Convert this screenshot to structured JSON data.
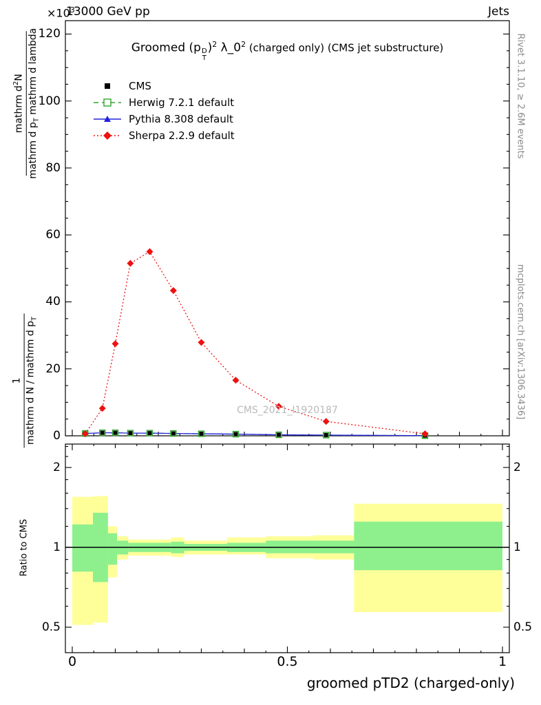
{
  "header": {
    "exponent_base": "×10",
    "exponent_sup": "3",
    "beam": "13000 GeV pp",
    "right": "Jets"
  },
  "title": {
    "part1": "Groomed",
    "part2": " (p",
    "sup_d": "D",
    "sub_t": "T",
    "part3": ")",
    "sup_2a": "2",
    "part4": " λ_0",
    "sup_2b": "2",
    "part5": "  (charged only) (CMS jet substructure)"
  },
  "watermark": "CMS_2021_I1920187",
  "y_axis": {
    "frac1_num_pre": "mathrm d",
    "frac1_num_sup": "2",
    "frac1_num_post": "N",
    "frac1_den_pre": "mathrm d p",
    "frac1_den_sub": "T",
    "frac1_den_post": " mathrm d lambda",
    "frac2_num": "1",
    "frac2_den_pre": "mathrm d N / mathrm d p",
    "frac2_den_sub": "T",
    "tick_labels": [
      "0",
      "20",
      "40",
      "60",
      "80",
      "100",
      "120"
    ],
    "tick_values": [
      0,
      20,
      40,
      60,
      80,
      100,
      120
    ]
  },
  "ratio_axis": {
    "label": "Ratio to CMS",
    "tick_labels": [
      "0.5",
      "1",
      "2"
    ],
    "tick_values": [
      0.5,
      1,
      2
    ],
    "minor_ticks": [
      0.6,
      0.7,
      0.8,
      0.9,
      1.2,
      1.4,
      1.6,
      1.8,
      2.2,
      2.4
    ]
  },
  "x_axis": {
    "label": "groomed pTD2 (charged-only)",
    "tick_labels": [
      "0",
      "0.5",
      "1"
    ],
    "tick_values": [
      0,
      0.5,
      1
    ]
  },
  "side_notes": {
    "top_right": "Rivet 3.1.10, ≥ 2.6M events",
    "bottom_right": "mcplots.cern.ch [arXiv:1306.3436]"
  },
  "legend": [
    {
      "label": "CMS",
      "marker": "square-filled",
      "color": "#000000",
      "line": "none"
    },
    {
      "label": "Herwig 7.2.1 default",
      "marker": "square-open",
      "color": "#2ca62c",
      "line": "dashed"
    },
    {
      "label": "Pythia 8.308 default",
      "marker": "triangle-filled",
      "color": "#2222dd",
      "line": "solid"
    },
    {
      "label": "Sherpa 2.2.9 default",
      "marker": "diamond-filled",
      "color": "#ee1111",
      "line": "dotted"
    }
  ],
  "chart_data": {
    "type": "line",
    "title": "Groomed (p_T^D)^2 lambda_0^2 (charged only) (CMS jet substructure)",
    "xlabel": "groomed pTD2 (charged-only)",
    "ylabel": "1/(dN/dp_T) d^2N/(dp_T dlambda)",
    "y_scale_factor": "×10^3",
    "xlim": [
      0,
      1
    ],
    "ylim": [
      0,
      124
    ],
    "grid": false,
    "legend_position": "upper-left",
    "x": [
      0.03,
      0.07,
      0.1,
      0.135,
      0.18,
      0.235,
      0.3,
      0.38,
      0.48,
      0.59,
      0.82
    ],
    "series": [
      {
        "name": "CMS",
        "color": "#000000",
        "marker": "square-filled",
        "line": "none",
        "values": [
          0.7,
          0.9,
          0.9,
          0.8,
          0.8,
          0.7,
          0.6,
          0.5,
          0.3,
          0.2,
          0.05
        ]
      },
      {
        "name": "Herwig 7.2.1 default",
        "color": "#2ca62c",
        "marker": "square-open",
        "line": "dashed",
        "values": [
          0.7,
          0.9,
          0.9,
          0.8,
          0.8,
          0.7,
          0.6,
          0.5,
          0.3,
          0.2,
          0.05
        ]
      },
      {
        "name": "Pythia 8.308 default",
        "color": "#2222dd",
        "marker": "triangle-filled",
        "line": "solid",
        "values": [
          0.7,
          0.9,
          0.9,
          0.8,
          0.8,
          0.7,
          0.6,
          0.5,
          0.3,
          0.2,
          0.05
        ]
      },
      {
        "name": "Sherpa 2.2.9 default",
        "color": "#ee1111",
        "marker": "diamond-filled",
        "line": "dotted",
        "values": [
          0.6,
          8.2,
          27.5,
          51.5,
          55.0,
          43.4,
          27.9,
          16.6,
          8.8,
          4.3,
          0.6
        ]
      }
    ],
    "ratio_panel": {
      "ylabel": "Ratio to CMS",
      "yscale": "log",
      "ylim": [
        0.4,
        2.45
      ],
      "reference_line": 1.0,
      "outer_color": "#ffff9a",
      "inner_color": "#8df08d",
      "bands": [
        {
          "x0": 0.0,
          "x1": 0.048,
          "outer_lo": 0.51,
          "outer_hi": 1.55,
          "inner_lo": 0.81,
          "inner_hi": 1.22
        },
        {
          "x0": 0.048,
          "x1": 0.083,
          "outer_lo": 0.52,
          "outer_hi": 1.56,
          "inner_lo": 0.74,
          "inner_hi": 1.35
        },
        {
          "x0": 0.083,
          "x1": 0.104,
          "outer_lo": 0.77,
          "outer_hi": 1.2,
          "inner_lo": 0.86,
          "inner_hi": 1.13
        },
        {
          "x0": 0.104,
          "x1": 0.13,
          "outer_lo": 0.9,
          "outer_hi": 1.1,
          "inner_lo": 0.94,
          "inner_hi": 1.06
        },
        {
          "x0": 0.13,
          "x1": 0.23,
          "outer_lo": 0.93,
          "outer_hi": 1.07,
          "inner_lo": 0.96,
          "inner_hi": 1.04
        },
        {
          "x0": 0.23,
          "x1": 0.26,
          "outer_lo": 0.92,
          "outer_hi": 1.09,
          "inner_lo": 0.95,
          "inner_hi": 1.05
        },
        {
          "x0": 0.26,
          "x1": 0.36,
          "outer_lo": 0.94,
          "outer_hi": 1.06,
          "inner_lo": 0.97,
          "inner_hi": 1.03
        },
        {
          "x0": 0.36,
          "x1": 0.45,
          "outer_lo": 0.94,
          "outer_hi": 1.09,
          "inner_lo": 0.96,
          "inner_hi": 1.04
        },
        {
          "x0": 0.45,
          "x1": 0.56,
          "outer_lo": 0.91,
          "outer_hi": 1.1,
          "inner_lo": 0.95,
          "inner_hi": 1.06
        },
        {
          "x0": 0.56,
          "x1": 0.655,
          "outer_lo": 0.9,
          "outer_hi": 1.11,
          "inner_lo": 0.95,
          "inner_hi": 1.06
        },
        {
          "x0": 0.655,
          "x1": 1.0,
          "outer_lo": 0.57,
          "outer_hi": 1.46,
          "inner_lo": 0.82,
          "inner_hi": 1.25
        }
      ]
    }
  }
}
